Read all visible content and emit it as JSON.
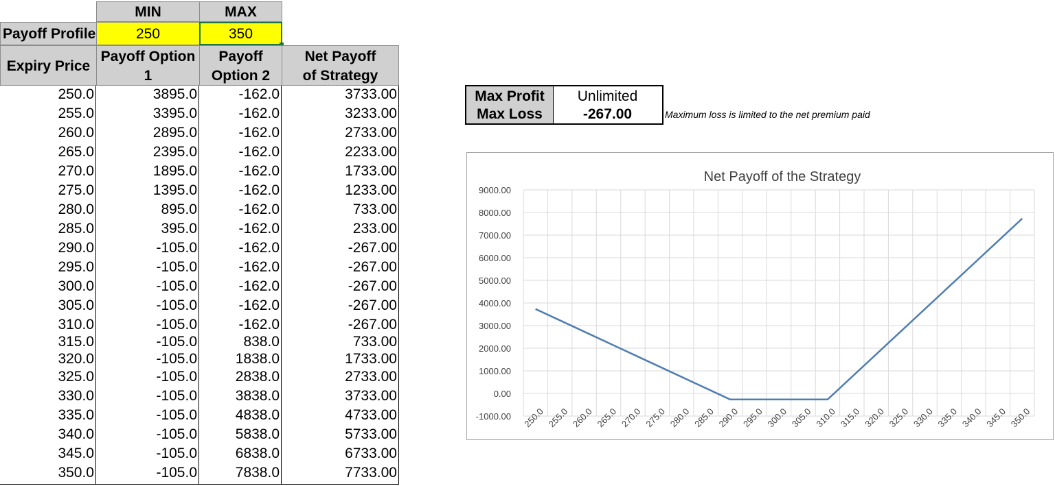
{
  "payoff_profile": {
    "min_header": "MIN",
    "max_header": "MAX",
    "label": "Payoff Profile",
    "min_value": "250",
    "max_value": "350"
  },
  "columns": {
    "expiry": "Expiry Price",
    "option1_line1": "Payoff Option",
    "option1_line2": "1",
    "option2_line1": "Payoff",
    "option2_line2": "Option 2",
    "net_line1": "Net Payoff",
    "net_line2": "of Strategy"
  },
  "rows": [
    [
      "250.0",
      "3895.0",
      "-162.0",
      "3733.00"
    ],
    [
      "255.0",
      "3395.0",
      "-162.0",
      "3233.00"
    ],
    [
      "260.0",
      "2895.0",
      "-162.0",
      "2733.00"
    ],
    [
      "265.0",
      "2395.0",
      "-162.0",
      "2233.00"
    ],
    [
      "270.0",
      "1895.0",
      "-162.0",
      "1733.00"
    ],
    [
      "275.0",
      "1395.0",
      "-162.0",
      "1233.00"
    ],
    [
      "280.0",
      "895.0",
      "-162.0",
      "733.00"
    ],
    [
      "285.0",
      "395.0",
      "-162.0",
      "233.00"
    ],
    [
      "290.0",
      "-105.0",
      "-162.0",
      "-267.00"
    ],
    [
      "295.0",
      "-105.0",
      "-162.0",
      "-267.00"
    ],
    [
      "300.0",
      "-105.0",
      "-162.0",
      "-267.00"
    ],
    [
      "305.0",
      "-105.0",
      "-162.0",
      "-267.00"
    ],
    [
      "310.0",
      "-105.0",
      "-162.0",
      "-267.00"
    ],
    [
      "315.0",
      "-105.0",
      "838.0",
      "733.00"
    ],
    [
      "320.0",
      "-105.0",
      "1838.0",
      "1733.00"
    ],
    [
      "325.0",
      "-105.0",
      "2838.0",
      "2733.00"
    ],
    [
      "330.0",
      "-105.0",
      "3838.0",
      "3733.00"
    ],
    [
      "335.0",
      "-105.0",
      "4838.0",
      "4733.00"
    ],
    [
      "340.0",
      "-105.0",
      "5838.0",
      "5733.00"
    ],
    [
      "345.0",
      "-105.0",
      "6838.0",
      "6733.00"
    ],
    [
      "350.0",
      "-105.0",
      "7838.0",
      "7733.00"
    ]
  ],
  "metrics": {
    "max_profit_label": "Max Profit",
    "max_profit_value": "Unlimited",
    "max_loss_label": "Max Loss",
    "max_loss_value": "-267.00",
    "note": "Maximum loss is limited to the net premium paid"
  },
  "chart_data": {
    "type": "line",
    "title": "Net Payoff of the Strategy",
    "x": [
      "250.0",
      "255.0",
      "260.0",
      "265.0",
      "270.0",
      "275.0",
      "280.0",
      "285.0",
      "290.0",
      "295.0",
      "300.0",
      "305.0",
      "310.0",
      "315.0",
      "320.0",
      "325.0",
      "330.0",
      "335.0",
      "340.0",
      "345.0",
      "350.0"
    ],
    "series": [
      {
        "values": [
          3733,
          3233,
          2733,
          2233,
          1733,
          1233,
          733,
          233,
          -267,
          -267,
          -267,
          -267,
          -267,
          733,
          1733,
          2733,
          3733,
          4733,
          5733,
          6733,
          7733
        ]
      }
    ],
    "y_ticks": [
      "9000.00",
      "8000.00",
      "7000.00",
      "6000.00",
      "5000.00",
      "4000.00",
      "3000.00",
      "2000.00",
      "1000.00",
      "0.00",
      "-1000.00"
    ],
    "ylim": [
      -1000,
      9000
    ],
    "grid": true,
    "line_color": "#4f7eb0"
  }
}
